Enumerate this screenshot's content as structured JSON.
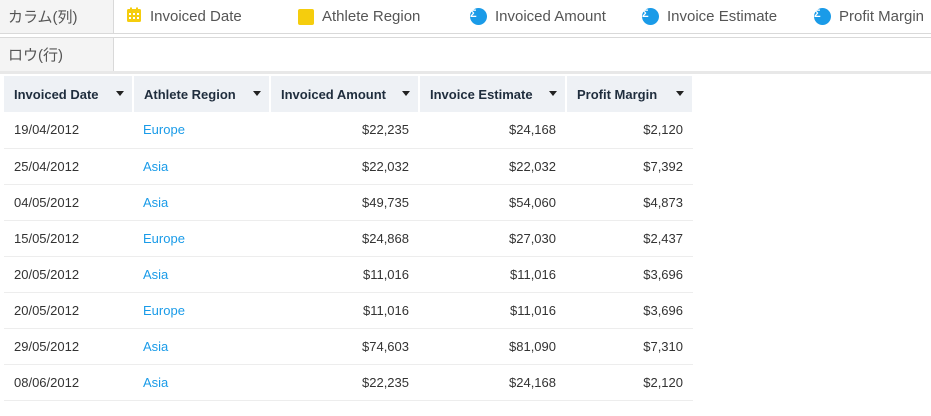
{
  "shelves": {
    "columns_label": "カラム(列)",
    "rows_label": "ロウ(行)",
    "column_pills": [
      {
        "label": "Invoiced Date",
        "icon": "calendar-icon",
        "color": "#f5cd0d"
      },
      {
        "label": "Athlete Region",
        "icon": "dimension-square-icon",
        "color": "#f5cd0d"
      },
      {
        "label": "Invoiced Amount",
        "icon": "sigma-icon",
        "color": "#1a9be8"
      },
      {
        "label": "Invoice Estimate",
        "icon": "sigma-icon",
        "color": "#1a9be8"
      },
      {
        "label": "Profit Margin",
        "icon": "sigma-icon",
        "color": "#1a9be8"
      }
    ]
  },
  "table": {
    "headers": [
      "Invoiced Date",
      "Athlete Region",
      "Invoiced Amount",
      "Invoice Estimate",
      "Profit Margin"
    ],
    "rows": [
      [
        "19/04/2012",
        "Europe",
        "$22,235",
        "$24,168",
        "$2,120"
      ],
      [
        "25/04/2012",
        "Asia",
        "$22,032",
        "$22,032",
        "$7,392"
      ],
      [
        "04/05/2012",
        "Asia",
        "$49,735",
        "$54,060",
        "$4,873"
      ],
      [
        "15/05/2012",
        "Europe",
        "$24,868",
        "$27,030",
        "$2,437"
      ],
      [
        "20/05/2012",
        "Asia",
        "$11,016",
        "$11,016",
        "$3,696"
      ],
      [
        "20/05/2012",
        "Europe",
        "$11,016",
        "$11,016",
        "$3,696"
      ],
      [
        "29/05/2012",
        "Asia",
        "$74,603",
        "$81,090",
        "$7,310"
      ],
      [
        "08/06/2012",
        "Asia",
        "$22,235",
        "$24,168",
        "$2,120"
      ]
    ],
    "link_color": "#1a9be8"
  }
}
